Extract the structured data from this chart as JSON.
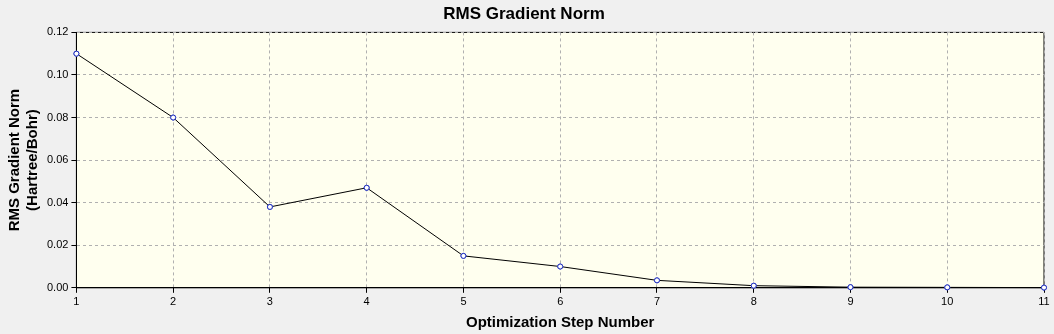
{
  "chart_data": {
    "type": "line",
    "title": "RMS Gradient Norm",
    "xlabel": "Optimization Step Number",
    "ylabel": "RMS Gradient Norm\n(Hartree/Bohr)",
    "x": [
      1,
      2,
      3,
      4,
      5,
      6,
      7,
      8,
      9,
      10,
      11
    ],
    "series": [
      {
        "color": "#000000",
        "values": [
          0.11,
          0.08,
          0.038,
          0.047,
          0.015,
          0.01,
          0.0035,
          0.001,
          0.0003,
          0.0002,
          0.0001
        ]
      }
    ],
    "xlim": [
      1,
      11
    ],
    "xticks": [
      1,
      2,
      3,
      4,
      5,
      6,
      7,
      8,
      9,
      10,
      11
    ],
    "ylim": [
      0,
      0.12
    ],
    "yticks": [
      {
        "value": 0,
        "label": "0.00"
      },
      {
        "value": 0.02,
        "label": "0.02"
      },
      {
        "value": 0.04,
        "label": "0.04"
      },
      {
        "value": 0.06,
        "label": "0.06"
      },
      {
        "value": 0.08,
        "label": "0.08"
      },
      {
        "value": 0.1,
        "label": "0.10"
      },
      {
        "value": 0.12,
        "label": "0.12"
      }
    ],
    "grid": true,
    "marker": "circle",
    "line_style": "solid",
    "legend": false
  }
}
